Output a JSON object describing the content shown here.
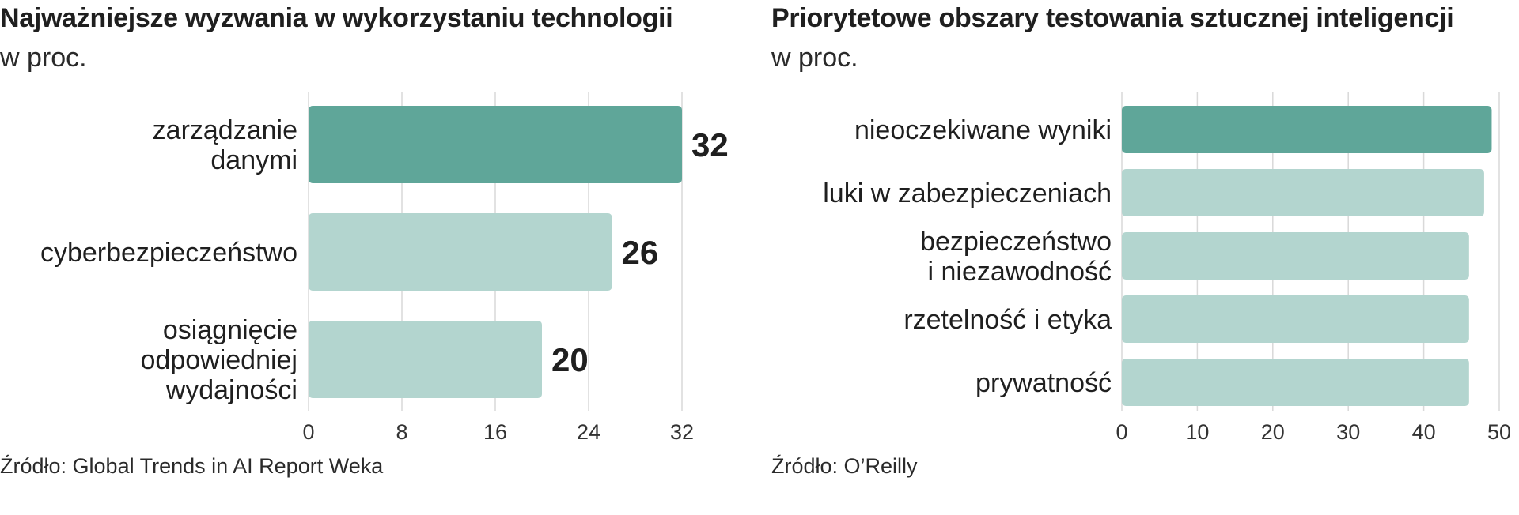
{
  "colors": {
    "highlight": "#5fa699",
    "muted": "#b3d5cf",
    "grid": "#d9d9d9"
  },
  "chart_data": [
    {
      "type": "bar",
      "orientation": "horizontal",
      "title": "Najważniejsze wyzwania w wykorzystaniu technologii",
      "subtitle": "w proc.",
      "source": "Źródło: Global Trends in AI Report Weka",
      "categories": [
        [
          "zarządzanie",
          "danymi"
        ],
        [
          "cyberbezpieczeństwo"
        ],
        [
          "osiągnięcie",
          "odpowiedniej",
          "wydajności"
        ]
      ],
      "values": [
        32,
        26,
        20
      ],
      "value_labels": [
        "32",
        "26",
        "20"
      ],
      "highlight_index": 0,
      "xlim": [
        0,
        32
      ],
      "xticks": [
        0,
        8,
        16,
        24,
        32
      ],
      "grid": true
    },
    {
      "type": "bar",
      "orientation": "horizontal",
      "title": "Priorytetowe obszary testowania sztucznej inteligencji",
      "subtitle": "w proc.",
      "source": "Źródło: O’Reilly",
      "categories": [
        [
          "nieoczekiwane wyniki"
        ],
        [
          "luki w zabezpieczeniach"
        ],
        [
          "bezpieczeństwo",
          "i niezawodność"
        ],
        [
          "rzetelność i etyka"
        ],
        [
          "prywatność"
        ]
      ],
      "values": [
        49,
        48,
        46,
        46,
        46
      ],
      "highlight_index": 0,
      "xlim": [
        0,
        50
      ],
      "xticks": [
        0,
        10,
        20,
        30,
        40,
        50
      ],
      "grid": true
    }
  ]
}
